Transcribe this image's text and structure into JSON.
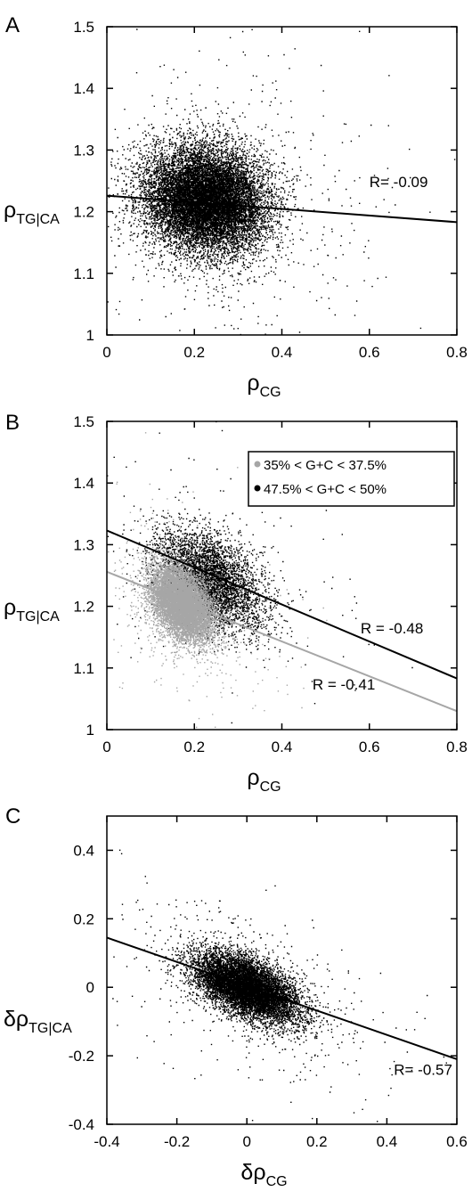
{
  "chart_data": [
    {
      "panel": "A",
      "type": "scatter",
      "xlabel_sym": "ρ",
      "xlabel_sub": "CG",
      "ylabel_sym": "ρ",
      "ylabel_sub": "TG|CA",
      "xlim": [
        0,
        0.8
      ],
      "ylim": [
        1,
        1.5
      ],
      "xticks": [
        "0",
        "0.2",
        "0.4",
        "0.6",
        "0.8"
      ],
      "yticks": [
        "1",
        "1.1",
        "1.2",
        "1.3",
        "1.4",
        "1.5"
      ],
      "grid": false,
      "series": [
        {
          "color": "#000000",
          "cloud": {
            "cx": 0.225,
            "cy": 1.22,
            "sx": 0.068,
            "sy": 0.042,
            "rho": -0.09,
            "n": 14000
          },
          "fit": {
            "x": [
              0,
              0.8
            ],
            "y": [
              1.226,
              1.183
            ]
          }
        }
      ],
      "annotations": [
        {
          "text": "R= -0.09",
          "x": 0.6,
          "y": 1.24
        }
      ]
    },
    {
      "panel": "B",
      "type": "scatter",
      "xlabel_sym": "ρ",
      "xlabel_sub": "CG",
      "ylabel_sym": "ρ",
      "ylabel_sub": "TG|CA",
      "xlim": [
        0,
        0.8
      ],
      "ylim": [
        1,
        1.5
      ],
      "xticks": [
        "0",
        "0.2",
        "0.4",
        "0.6",
        "0.8"
      ],
      "yticks": [
        "1",
        "1.1",
        "1.2",
        "1.3",
        "1.4",
        "1.5"
      ],
      "grid": false,
      "legend_position": "top-right",
      "series": [
        {
          "name": "47.5% < G+C < 50%",
          "color": "#000000",
          "cloud": {
            "cx": 0.235,
            "cy": 1.245,
            "sx": 0.06,
            "sy": 0.04,
            "rho": -0.48,
            "n": 4500
          },
          "fit": {
            "x": [
              0,
              0.8
            ],
            "y": [
              1.323,
              1.083
            ]
          }
        },
        {
          "name": "35% < G+C < 37.5%",
          "color": "#a6a6a6",
          "cloud": {
            "cx": 0.17,
            "cy": 1.205,
            "sx": 0.035,
            "sy": 0.03,
            "rho": -0.41,
            "n": 9000
          },
          "fit": {
            "x": [
              0,
              0.8
            ],
            "y": [
              1.256,
              1.03
            ]
          }
        }
      ],
      "legend": [
        "35% < G+C < 37.5%",
        "47.5% < G+C < 50%"
      ],
      "annotations": [
        {
          "text": "R = -0.48",
          "x": 0.58,
          "y": 1.156
        },
        {
          "text": "R = -0.41",
          "x": 0.47,
          "y": 1.065
        }
      ]
    },
    {
      "panel": "C",
      "type": "scatter",
      "xlabel_sym": "δρ",
      "xlabel_sub": "CG",
      "ylabel_sym": "δρ",
      "ylabel_sub": "TG|CA",
      "xlim": [
        -0.4,
        0.6
      ],
      "ylim": [
        -0.4,
        0.5
      ],
      "xticks": [
        "-0.4",
        "-0.2",
        "0",
        "0.2",
        "0.4",
        "0.6"
      ],
      "yticks": [
        "-0.4",
        "-0.2",
        "0",
        "0.2",
        "0.4"
      ],
      "grid": false,
      "series": [
        {
          "color": "#000000",
          "cloud": {
            "cx": 0.0,
            "cy": 0.0,
            "sx": 0.075,
            "sy": 0.05,
            "rho": -0.57,
            "n": 9000
          },
          "fit": {
            "x": [
              -0.4,
              0.6
            ],
            "y": [
              0.145,
              -0.21
            ]
          }
        }
      ],
      "annotations": [
        {
          "text": "R= -0.57",
          "x": 0.42,
          "y": -0.255
        }
      ]
    }
  ]
}
